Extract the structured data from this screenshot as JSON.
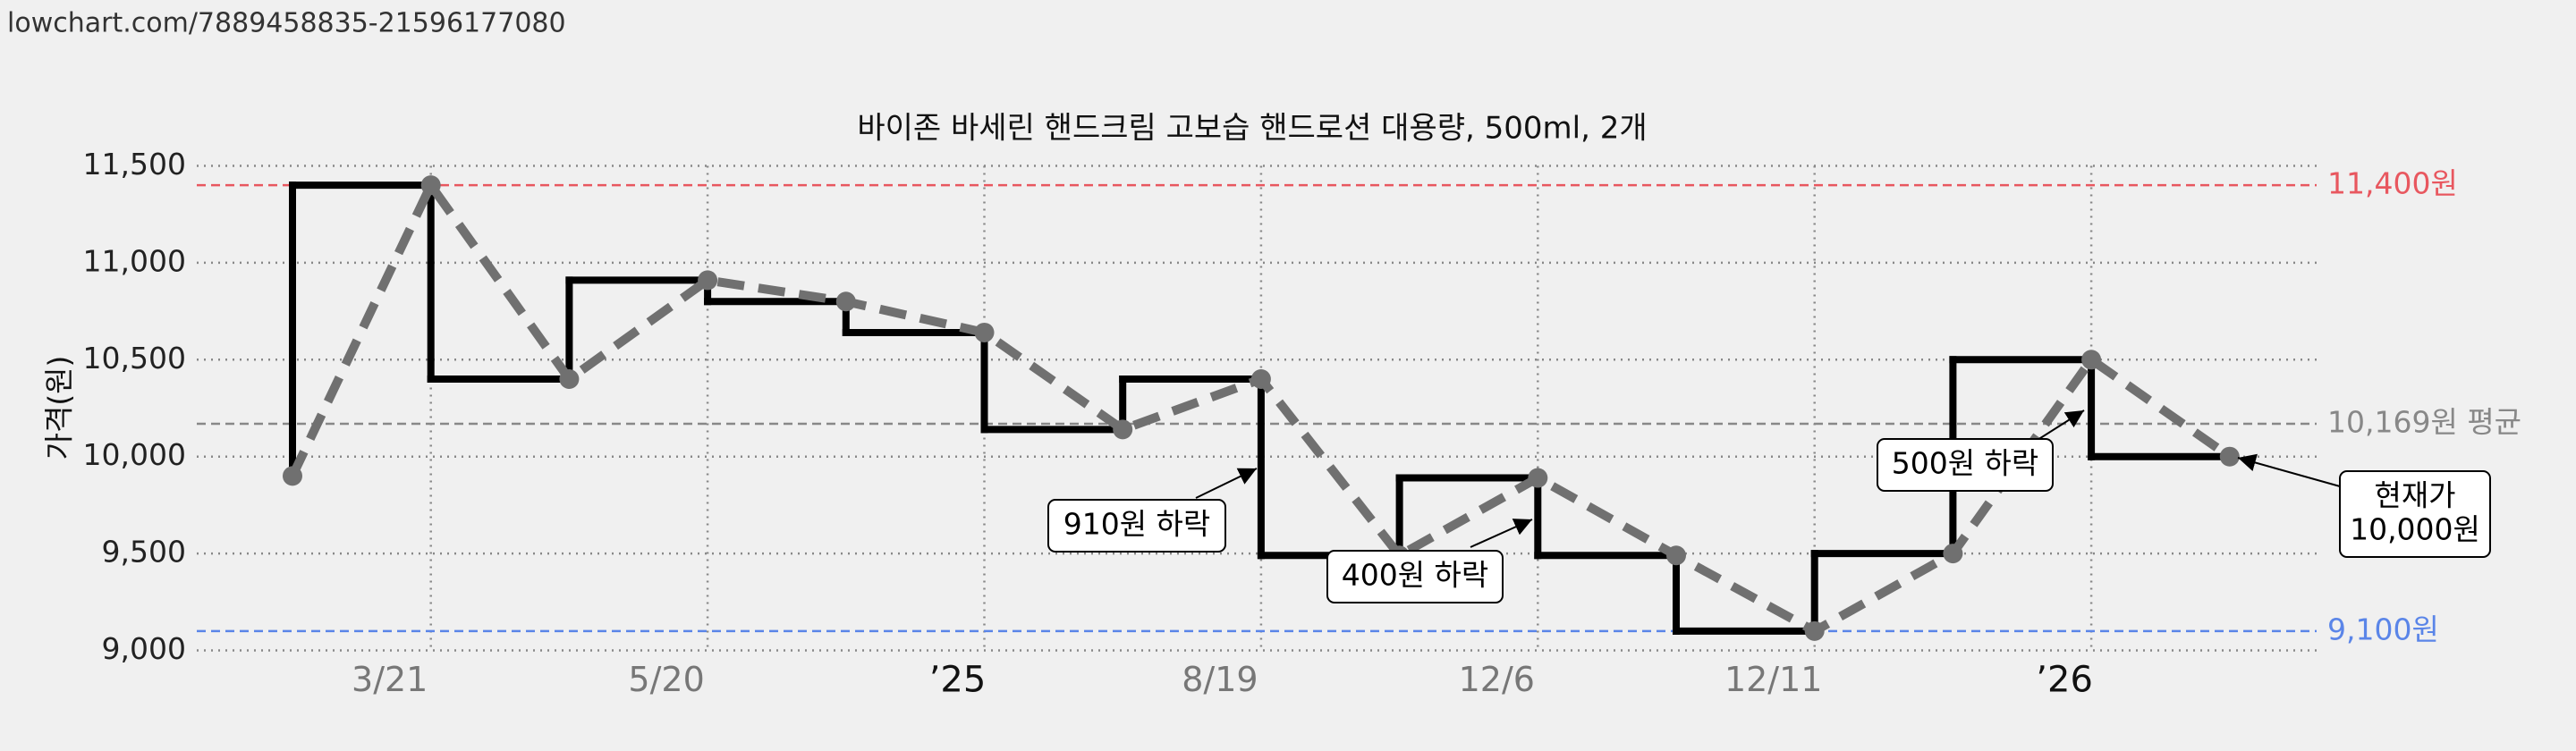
{
  "url": "lowchart.com/7889458835-21596177080",
  "chart_data": {
    "type": "step-line",
    "title": "바이존 바세린 핸드크림 고보습 핸드로션 대용량, 500ml, 2개",
    "y_label": "가격(원)",
    "categories": [
      null,
      "3/21",
      null,
      "5/20",
      null,
      "’25",
      null,
      "8/19",
      null,
      "12/6",
      null,
      "12/11",
      null,
      "’26",
      null
    ],
    "values": [
      9900,
      11400,
      10400,
      10910,
      10800,
      10640,
      10140,
      10400,
      9490,
      9890,
      9490,
      9100,
      9500,
      10500,
      10000
    ],
    "step_color": "#000000",
    "line_color": "#707070",
    "ylim": [
      9000,
      11500
    ],
    "yticks": [
      {
        "value": 9000,
        "label": "9,000"
      },
      {
        "value": 9500,
        "label": "9,500"
      },
      {
        "value": 10000,
        "label": "10,000"
      },
      {
        "value": 10500,
        "label": "10,500"
      },
      {
        "value": 11000,
        "label": "11,000"
      },
      {
        "value": 11500,
        "label": "11,500"
      }
    ],
    "grid": true,
    "reference_lines": [
      {
        "value": 11400,
        "label": "11,400원",
        "color": "#e8575f"
      },
      {
        "value": 10169,
        "label": "10,169원 평균",
        "color": "#888888"
      },
      {
        "value": 9100,
        "label": "9,100원",
        "color": "#5a85e8"
      }
    ],
    "annotations": [
      {
        "lines": [
          "910원 하락"
        ]
      },
      {
        "lines": [
          "400원 하락"
        ]
      },
      {
        "lines": [
          "500원 하락"
        ]
      },
      {
        "lines": [
          "현재가",
          "10,000원"
        ]
      }
    ]
  }
}
